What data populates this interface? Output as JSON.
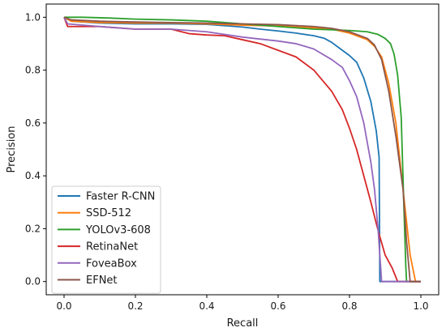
{
  "chart_data": {
    "type": "line",
    "title": "",
    "xlabel": "Recall",
    "ylabel": "Precision",
    "xlim": [
      -0.05,
      1.05
    ],
    "ylim": [
      -0.05,
      1.05
    ],
    "xticks": [
      0.0,
      0.2,
      0.4,
      0.6,
      0.8,
      1.0
    ],
    "xtick_labels": [
      "0.0",
      "0.2",
      "0.4",
      "0.6",
      "0.8",
      "1.0"
    ],
    "yticks": [
      0.0,
      0.2,
      0.4,
      0.6,
      0.8,
      1.0
    ],
    "ytick_labels": [
      "0.0",
      "0.2",
      "0.4",
      "0.6",
      "0.8",
      "1.0"
    ],
    "grid": false,
    "legend": {
      "location": "lower-left"
    },
    "series": [
      {
        "name": "Faster R-CNN",
        "color": "#1f77b4",
        "x": [
          0.0,
          0.02,
          0.1,
          0.2,
          0.3,
          0.4,
          0.5,
          0.55,
          0.6,
          0.65,
          0.7,
          0.73,
          0.75,
          0.77,
          0.79,
          0.8,
          0.82,
          0.84,
          0.86,
          0.875,
          0.883,
          0.885,
          0.9,
          1.0
        ],
        "y": [
          1.0,
          0.985,
          0.978,
          0.975,
          0.975,
          0.973,
          0.963,
          0.955,
          0.948,
          0.94,
          0.93,
          0.92,
          0.905,
          0.885,
          0.865,
          0.855,
          0.83,
          0.77,
          0.68,
          0.57,
          0.47,
          0.0,
          0.0,
          0.0
        ]
      },
      {
        "name": "SSD-512",
        "color": "#ff7f0e",
        "x": [
          0.0,
          0.02,
          0.1,
          0.2,
          0.3,
          0.4,
          0.5,
          0.6,
          0.7,
          0.75,
          0.8,
          0.85,
          0.87,
          0.89,
          0.91,
          0.93,
          0.95,
          0.97,
          0.985,
          1.0
        ],
        "y": [
          1.0,
          0.985,
          0.98,
          0.978,
          0.978,
          0.975,
          0.97,
          0.967,
          0.96,
          0.955,
          0.94,
          0.915,
          0.89,
          0.85,
          0.75,
          0.6,
          0.35,
          0.1,
          0.0,
          0.0
        ]
      },
      {
        "name": "YOLOv3-608",
        "color": "#2ca02c",
        "x": [
          0.0,
          0.05,
          0.13,
          0.2,
          0.3,
          0.4,
          0.5,
          0.6,
          0.7,
          0.8,
          0.85,
          0.88,
          0.9,
          0.915,
          0.925,
          0.935,
          0.945,
          0.952,
          0.958,
          0.96,
          0.97,
          1.0
        ],
        "y": [
          1.0,
          1.0,
          0.997,
          0.993,
          0.99,
          0.985,
          0.975,
          0.965,
          0.955,
          0.95,
          0.945,
          0.935,
          0.92,
          0.9,
          0.86,
          0.78,
          0.62,
          0.3,
          0.05,
          0.0,
          0.0,
          0.0
        ]
      },
      {
        "name": "RetinaNet",
        "color": "#d62728",
        "x": [
          0.0,
          0.01,
          0.05,
          0.1,
          0.2,
          0.3,
          0.35,
          0.4,
          0.45,
          0.5,
          0.55,
          0.6,
          0.65,
          0.7,
          0.75,
          0.78,
          0.8,
          0.82,
          0.84,
          0.86,
          0.875,
          0.885,
          0.9,
          0.92,
          0.935,
          0.94,
          1.0
        ],
        "y": [
          1.0,
          0.965,
          0.965,
          0.965,
          0.955,
          0.955,
          0.938,
          0.933,
          0.93,
          0.915,
          0.9,
          0.875,
          0.85,
          0.8,
          0.72,
          0.65,
          0.58,
          0.5,
          0.4,
          0.3,
          0.22,
          0.17,
          0.1,
          0.05,
          0.0,
          0.0,
          0.0
        ]
      },
      {
        "name": "FoveaBox",
        "color": "#9467bd",
        "x": [
          0.0,
          0.01,
          0.1,
          0.2,
          0.3,
          0.4,
          0.5,
          0.6,
          0.65,
          0.7,
          0.75,
          0.78,
          0.8,
          0.82,
          0.84,
          0.86,
          0.87,
          0.88,
          0.89,
          1.0
        ],
        "y": [
          1.0,
          0.975,
          0.965,
          0.955,
          0.955,
          0.945,
          0.925,
          0.91,
          0.9,
          0.88,
          0.84,
          0.81,
          0.76,
          0.7,
          0.6,
          0.45,
          0.35,
          0.2,
          0.0,
          0.0
        ]
      },
      {
        "name": "EFNet",
        "color": "#8c564b",
        "x": [
          0.0,
          0.02,
          0.1,
          0.2,
          0.3,
          0.4,
          0.5,
          0.6,
          0.7,
          0.75,
          0.8,
          0.85,
          0.87,
          0.89,
          0.91,
          0.93,
          0.95,
          0.96,
          0.97,
          1.0
        ],
        "y": [
          1.0,
          0.99,
          0.985,
          0.982,
          0.98,
          0.978,
          0.975,
          0.972,
          0.965,
          0.958,
          0.945,
          0.92,
          0.895,
          0.84,
          0.72,
          0.55,
          0.35,
          0.15,
          0.0,
          0.0
        ]
      }
    ]
  }
}
